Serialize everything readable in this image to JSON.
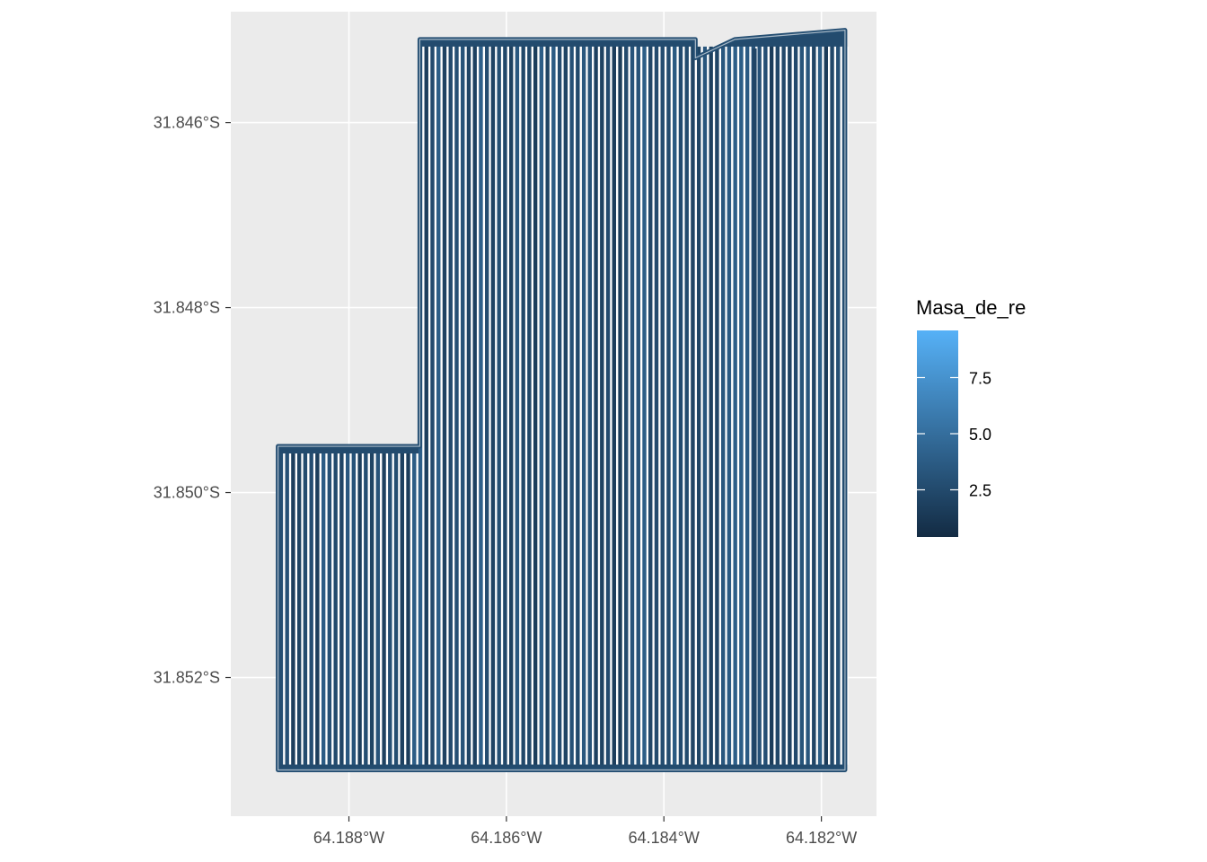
{
  "chart_data": {
    "type": "map",
    "title": "",
    "xlabel": "",
    "ylabel": "",
    "x_ticks": [
      "64.188°W",
      "64.186°W",
      "64.184°W",
      "64.182°W"
    ],
    "x_tick_values": [
      -64.188,
      -64.186,
      -64.184,
      -64.182
    ],
    "y_ticks": [
      "31.846°S",
      "31.848°S",
      "31.850°S",
      "31.852°S"
    ],
    "y_tick_values": [
      -31.846,
      -31.848,
      -31.85,
      -31.852
    ],
    "xlim": [
      -64.1895,
      -64.1813
    ],
    "ylim": [
      -31.8535,
      -31.8448
    ],
    "grid": true,
    "legend": {
      "title": "Masa_de_re",
      "position": "right",
      "breaks": [
        "2.5",
        "5.0",
        "7.5"
      ],
      "break_values": [
        2.5,
        5.0,
        7.5
      ],
      "range": [
        0.4,
        9.6
      ],
      "colors": [
        "#132B43",
        "#56B1F7"
      ]
    },
    "field_outline": [
      [
        -64.1889,
        -31.8495
      ],
      [
        -64.1871,
        -31.8495
      ],
      [
        -64.1871,
        -31.8451
      ],
      [
        -64.1836,
        -31.8451
      ],
      [
        -64.1836,
        -31.8453
      ],
      [
        -64.1831,
        -31.8451
      ],
      [
        -64.1817,
        -31.845
      ],
      [
        -64.1817,
        -31.853
      ],
      [
        -64.1889,
        -31.853
      ]
    ],
    "pass_spacing_deg": 7.69e-05,
    "typical_value_range": [
      1.5,
      4.0
    ]
  }
}
